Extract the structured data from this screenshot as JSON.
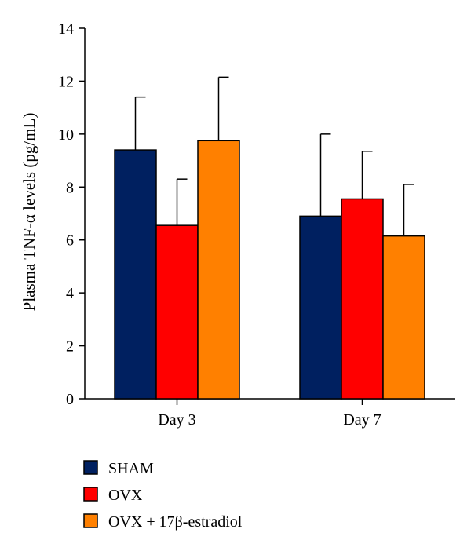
{
  "chart_data": {
    "type": "bar",
    "title": "",
    "xlabel": "",
    "ylabel": "Plasma TNF-α levels (pg/mL)",
    "ylim": [
      0,
      14
    ],
    "yticks": [
      0,
      2,
      4,
      6,
      8,
      10,
      12,
      14
    ],
    "categories": [
      "Day 3",
      "Day 7"
    ],
    "series": [
      {
        "name": "SHAM",
        "color": "#002060",
        "values": [
          9.4,
          6.9
        ],
        "errors": [
          2.0,
          3.1
        ]
      },
      {
        "name": "OVX",
        "color": "#ff0000",
        "values": [
          6.55,
          7.55
        ],
        "errors": [
          1.75,
          1.8
        ]
      },
      {
        "name": "OVX + 17β-estradiol",
        "color": "#ff8000",
        "values": [
          9.75,
          6.15
        ],
        "errors": [
          2.4,
          1.95
        ]
      }
    ],
    "legend_position": "bottom-left",
    "grid": false
  }
}
